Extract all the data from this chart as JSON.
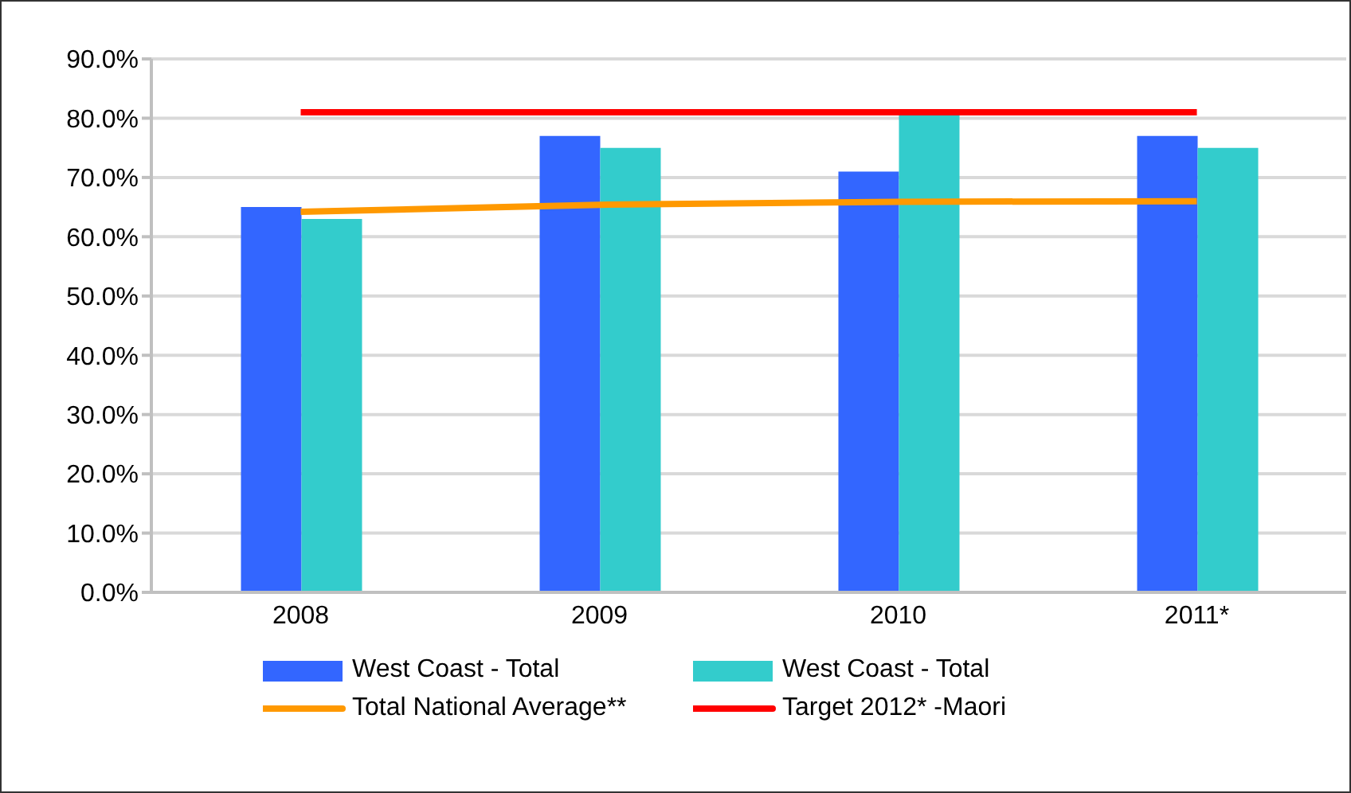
{
  "chart_data": {
    "type": "bar",
    "categories": [
      "2008",
      "2009",
      "2010",
      "2011*"
    ],
    "series": [
      {
        "name": "West Coast - Total",
        "color": "#3366ff",
        "values": [
          65,
          77,
          71,
          77
        ]
      },
      {
        "name": "West Coast - Total",
        "color": "#33cccc",
        "values": [
          63,
          75,
          81,
          75
        ]
      },
      {
        "name": "Total National Average**",
        "type": "line",
        "color": "#ff9900",
        "values": [
          64.2,
          65.4,
          65.9,
          66
        ]
      },
      {
        "name": "Target 2012* -Maori",
        "type": "line",
        "color": "#ff0000",
        "values": [
          81,
          81,
          81,
          81
        ]
      }
    ],
    "ylim": [
      0,
      90
    ],
    "yticks": [
      {
        "value": 0,
        "label": "0.0%"
      },
      {
        "value": 10,
        "label": "10.0%"
      },
      {
        "value": 20,
        "label": "20.0%"
      },
      {
        "value": 30,
        "label": "30.0%"
      },
      {
        "value": 40,
        "label": "40.0%"
      },
      {
        "value": 50,
        "label": "50.0%"
      },
      {
        "value": 60,
        "label": "60.0%"
      },
      {
        "value": 70,
        "label": "70.0%"
      },
      {
        "value": 80,
        "label": "80.0%"
      },
      {
        "value": 90,
        "label": "90.0%"
      }
    ],
    "grid": "y",
    "legend": "bottom",
    "marker": "none"
  }
}
